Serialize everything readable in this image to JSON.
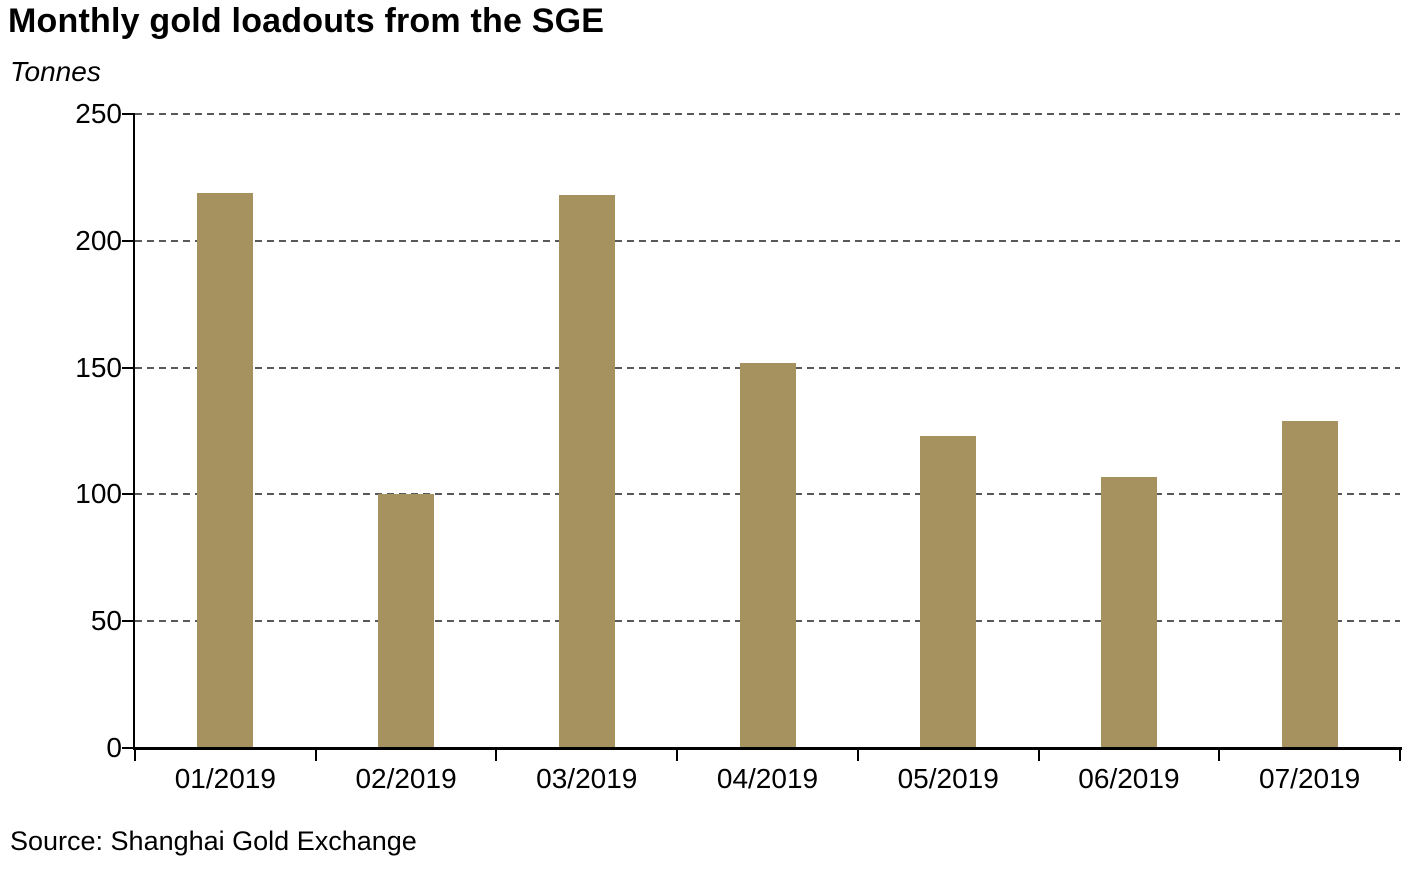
{
  "title": "Monthly gold loadouts from the SGE",
  "y_axis_unit_label": "Tonnes",
  "source_note": "Source: Shanghai Gold Exchange",
  "colors": {
    "bar": "#A6925F",
    "gridline": "#595959",
    "axis": "#000000",
    "text": "#000000",
    "background": "#FFFFFF"
  },
  "chart_data": {
    "type": "bar",
    "title": "Monthly gold loadouts from the SGE",
    "ylabel": "Tonnes",
    "xlabel": "",
    "categories": [
      "01/2019",
      "02/2019",
      "03/2019",
      "04/2019",
      "05/2019",
      "06/2019",
      "07/2019"
    ],
    "values": [
      219,
      100,
      218,
      152,
      123,
      107,
      129
    ],
    "ylim": [
      0,
      250
    ],
    "yticks": [
      0,
      50,
      100,
      150,
      200,
      250
    ],
    "grid": "horizontal-dashed",
    "legend_position": "none",
    "bar_color": "#A6925F",
    "source": "Source: Shanghai Gold Exchange"
  }
}
